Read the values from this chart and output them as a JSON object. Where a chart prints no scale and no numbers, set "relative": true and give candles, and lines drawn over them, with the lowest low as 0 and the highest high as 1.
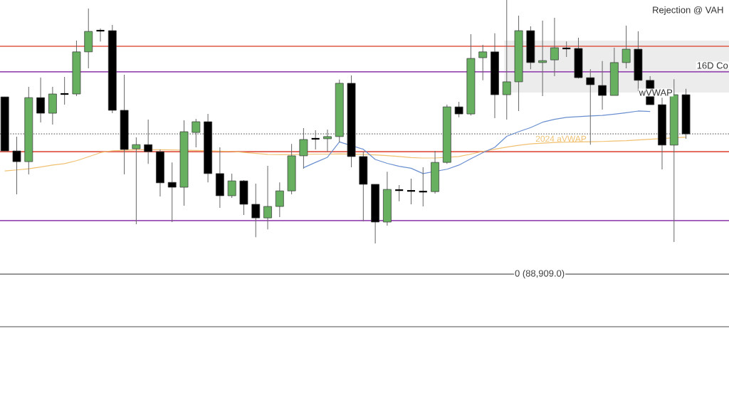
{
  "chart_data": {
    "type": "candlestick",
    "relative": true,
    "categories": [
      null,
      null,
      null,
      null,
      null,
      null,
      null,
      null,
      null,
      null,
      null,
      null,
      null,
      null,
      null,
      null,
      null,
      null,
      null,
      null,
      null,
      null,
      null,
      null,
      null,
      null,
      null,
      null,
      null,
      null,
      null,
      null,
      null,
      null,
      null,
      null,
      null,
      null,
      null,
      null,
      null,
      null,
      null,
      null,
      null,
      null,
      null,
      null,
      null,
      null,
      null,
      null,
      null,
      null,
      null,
      null,
      null,
      null
    ],
    "ohlc": [
      [
        0.602,
        0.602,
        0.38,
        0.38
      ],
      [
        0.38,
        0.439,
        0.202,
        0.336
      ],
      [
        0.336,
        0.643,
        0.284,
        0.599
      ],
      [
        0.599,
        0.681,
        0.497,
        0.535
      ],
      [
        0.535,
        0.643,
        0.488,
        0.614
      ],
      [
        0.614,
        0.684,
        0.57,
        0.614
      ],
      [
        0.614,
        0.833,
        0.605,
        0.787
      ],
      [
        0.787,
        0.965,
        0.719,
        0.871
      ],
      [
        0.874,
        0.883,
        0.83,
        0.874
      ],
      [
        0.874,
        0.898,
        0.535,
        0.547
      ],
      [
        0.547,
        0.693,
        0.284,
        0.386
      ],
      [
        0.389,
        0.436,
        0.079,
        0.406
      ],
      [
        0.406,
        0.509,
        0.327,
        0.377
      ],
      [
        0.377,
        0.386,
        0.193,
        0.249
      ],
      [
        0.251,
        0.333,
        0.088,
        0.231
      ],
      [
        0.231,
        0.506,
        0.155,
        0.459
      ],
      [
        0.456,
        0.512,
        0.395,
        0.5
      ],
      [
        0.5,
        0.532,
        0.251,
        0.287
      ],
      [
        0.287,
        0.395,
        0.146,
        0.196
      ],
      [
        0.196,
        0.287,
        0.187,
        0.257
      ],
      [
        0.257,
        0.26,
        0.117,
        0.161
      ],
      [
        0.161,
        0.246,
        0.026,
        0.105
      ],
      [
        0.105,
        0.319,
        0.058,
        0.152
      ],
      [
        0.152,
        0.251,
        0.108,
        0.216
      ],
      [
        0.216,
        0.409,
        0.202,
        0.36
      ],
      [
        0.36,
        0.474,
        0.307,
        0.427
      ],
      [
        0.43,
        0.465,
        0.386,
        0.43
      ],
      [
        0.43,
        0.468,
        0.377,
        0.439
      ],
      [
        0.439,
        0.673,
        0.415,
        0.658
      ],
      [
        0.658,
        0.69,
        0.313,
        0.357
      ],
      [
        0.357,
        0.377,
        0.091,
        0.243
      ],
      [
        0.243,
        0.243,
        0.0,
        0.088
      ],
      [
        0.088,
        0.295,
        0.073,
        0.222
      ],
      [
        0.219,
        0.24,
        0.173,
        0.219
      ],
      [
        0.216,
        0.266,
        0.161,
        0.216
      ],
      [
        0.213,
        0.313,
        0.152,
        0.213
      ],
      [
        0.213,
        0.38,
        0.205,
        0.333
      ],
      [
        0.333,
        0.57,
        0.327,
        0.561
      ],
      [
        0.561,
        0.582,
        0.518,
        0.532
      ],
      [
        0.532,
        0.86,
        0.526,
        0.76
      ],
      [
        0.763,
        0.816,
        0.67,
        0.787
      ],
      [
        0.787,
        0.863,
        0.515,
        0.611
      ],
      [
        0.611,
        1.0,
        0.509,
        0.664
      ],
      [
        0.664,
        0.936,
        0.544,
        0.874
      ],
      [
        0.874,
        0.892,
        0.716,
        0.743
      ],
      [
        0.743,
        0.915,
        0.605,
        0.751
      ],
      [
        0.754,
        0.927,
        0.687,
        0.804
      ],
      [
        0.801,
        0.83,
        0.766,
        0.801
      ],
      [
        0.801,
        0.845,
        0.678,
        0.681
      ],
      [
        0.681,
        0.716,
        0.406,
        0.652
      ],
      [
        0.649,
        0.749,
        0.55,
        0.608
      ],
      [
        0.608,
        0.804,
        0.608,
        0.743
      ],
      [
        0.743,
        0.895,
        0.719,
        0.798
      ],
      [
        0.798,
        0.871,
        0.626,
        0.67
      ],
      [
        0.67,
        0.687,
        0.57,
        0.57
      ],
      [
        0.57,
        0.599,
        0.304,
        0.404
      ],
      [
        0.404,
        0.675,
        0.006,
        0.611
      ],
      [
        0.611,
        0.635,
        0.43,
        0.45
      ]
    ],
    "colors": [
      "#000000",
      "#000000",
      "#66b060",
      "#000000",
      "#66b060",
      "#000000",
      "#66b060",
      "#66b060",
      "#000000",
      "#000000",
      "#000000",
      "#66b060",
      "#000000",
      "#000000",
      "#000000",
      "#66b060",
      "#66b060",
      "#000000",
      "#000000",
      "#66b060",
      "#000000",
      "#000000",
      "#66b060",
      "#66b060",
      "#66b060",
      "#66b060",
      "#000000",
      "#66b060",
      "#66b060",
      "#000000",
      "#000000",
      "#000000",
      "#66b060",
      "#000000",
      "#000000",
      "#000000",
      "#66b060",
      "#66b060",
      "#000000",
      "#66b060",
      "#66b060",
      "#000000",
      "#66b060",
      "#66b060",
      "#000000",
      "#66b060",
      "#66b060",
      "#000000",
      "#000000",
      "#000000",
      "#000000",
      "#66b060",
      "#66b060",
      "#000000",
      "#000000",
      "#000000",
      "#66b060",
      "#000000"
    ],
    "series": [
      {
        "type": "line",
        "name": "2024 aVWAP",
        "color": "#f0c070",
        "values": [
          0.298,
          0.302,
          0.307,
          0.314,
          0.322,
          0.328,
          0.34,
          0.356,
          0.373,
          0.381,
          0.383,
          0.385,
          null,
          0.385,
          0.384,
          null,
          0.382,
          null,
          0.379,
          0.378,
          0.374,
          0.37,
          0.366,
          0.365,
          0.365,
          null,
          0.367,
          0.367,
          0.368,
          null,
          0.366,
          0.364,
          0.361,
          0.357,
          0.353,
          0.351,
          0.351,
          null,
          0.357,
          0.367,
          0.378,
          0.387,
          0.396,
          0.403,
          0.409,
          0.412,
          0.415,
          0.416,
          0.417,
          0.418,
          0.419,
          0.421,
          0.422,
          0.425,
          0.428,
          null,
          null,
          0.437
        ]
      },
      {
        "type": "line",
        "color": "#6a8fd0",
        "values": [
          null,
          null,
          null,
          null,
          null,
          null,
          null,
          null,
          null,
          null,
          null,
          null,
          null,
          null,
          null,
          null,
          null,
          null,
          null,
          null,
          null,
          null,
          null,
          null,
          null,
          0.311,
          0.333,
          0.354,
          0.417,
          null,
          0.387,
          0.345,
          0.329,
          0.317,
          0.309,
          0.287,
          null,
          0.305,
          0.322,
          0.348,
          0.373,
          0.395,
          0.44,
          0.459,
          0.476,
          0.498,
          0.51,
          0.518,
          0.521,
          0.524,
          0.526,
          0.531,
          0.537,
          0.544,
          0.542,
          null,
          null,
          null
        ]
      }
    ],
    "ref_lines": [
      {
        "axis": "y",
        "value": 0.705,
        "color": "#9b4fb5"
      },
      {
        "axis": "y",
        "value": 0.094,
        "color": "#9b4fb5"
      },
      {
        "axis": "y",
        "value": 0.377,
        "color": "#e0584a"
      },
      {
        "axis": "y",
        "value": 0.81,
        "color": "#e0584a"
      },
      {
        "axis": "y",
        "value": 0.45,
        "color": "#999999",
        "line_style": "dotted"
      },
      {
        "axis": "y",
        "value": -0.126,
        "color": "#888888",
        "label": "0 (88,909.0)"
      },
      {
        "axis": "y",
        "value": -0.342,
        "color": "#888888"
      }
    ],
    "bands": [
      {
        "axis": "y",
        "from": 0.62,
        "to": 0.833,
        "color": "#ececec"
      }
    ],
    "annotations": [
      "Rejection @ VAH",
      "16D Co",
      "wVWAP"
    ]
  }
}
